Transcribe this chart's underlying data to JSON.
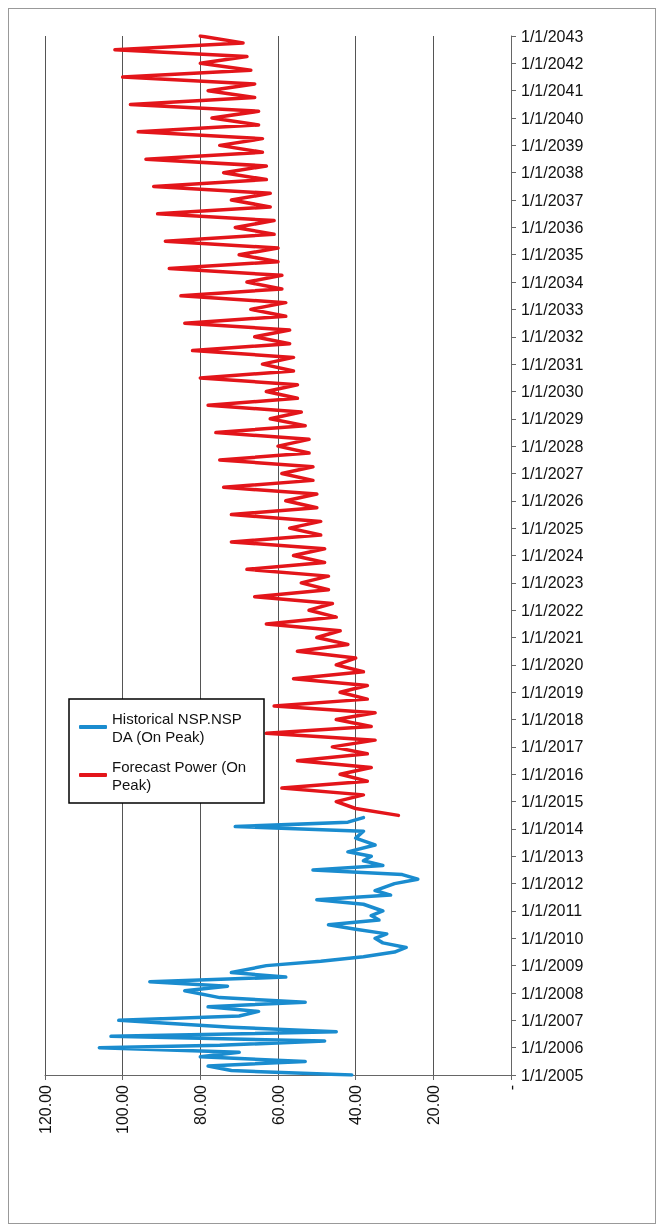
{
  "chart_data": {
    "type": "line",
    "orientation": "horizontal",
    "ylim": [
      "2005-01-01",
      "2043-01-01"
    ],
    "yticks": [
      {
        "value": "2005-01-01",
        "label": "1/1/2005"
      },
      {
        "value": "2006-01-01",
        "label": "1/1/2006"
      },
      {
        "value": "2007-01-01",
        "label": "1/1/2007"
      },
      {
        "value": "2008-01-01",
        "label": "1/1/2008"
      },
      {
        "value": "2009-01-01",
        "label": "1/1/2009"
      },
      {
        "value": "2010-01-01",
        "label": "1/1/2010"
      },
      {
        "value": "2011-01-01",
        "label": "1/1/2011"
      },
      {
        "value": "2012-01-01",
        "label": "1/1/2012"
      },
      {
        "value": "2013-01-01",
        "label": "1/1/2013"
      },
      {
        "value": "2014-01-01",
        "label": "1/1/2014"
      },
      {
        "value": "2015-01-01",
        "label": "1/1/2015"
      },
      {
        "value": "2016-01-01",
        "label": "1/1/2016"
      },
      {
        "value": "2017-01-01",
        "label": "1/1/2017"
      },
      {
        "value": "2018-01-01",
        "label": "1/1/2018"
      },
      {
        "value": "2019-01-01",
        "label": "1/1/2019"
      },
      {
        "value": "2020-01-01",
        "label": "1/1/2020"
      },
      {
        "value": "2021-01-01",
        "label": "1/1/2021"
      },
      {
        "value": "2022-01-01",
        "label": "1/1/2022"
      },
      {
        "value": "2023-01-01",
        "label": "1/1/2023"
      },
      {
        "value": "2024-01-01",
        "label": "1/1/2024"
      },
      {
        "value": "2025-01-01",
        "label": "1/1/2025"
      },
      {
        "value": "2026-01-01",
        "label": "1/1/2026"
      },
      {
        "value": "2027-01-01",
        "label": "1/1/2027"
      },
      {
        "value": "2028-01-01",
        "label": "1/1/2028"
      },
      {
        "value": "2029-01-01",
        "label": "1/1/2029"
      },
      {
        "value": "2030-01-01",
        "label": "1/1/2030"
      },
      {
        "value": "2031-01-01",
        "label": "1/1/2031"
      },
      {
        "value": "2032-01-01",
        "label": "1/1/2032"
      },
      {
        "value": "2033-01-01",
        "label": "1/1/2033"
      },
      {
        "value": "2034-01-01",
        "label": "1/1/2034"
      },
      {
        "value": "2035-01-01",
        "label": "1/1/2035"
      },
      {
        "value": "2036-01-01",
        "label": "1/1/2036"
      },
      {
        "value": "2037-01-01",
        "label": "1/1/2037"
      },
      {
        "value": "2038-01-01",
        "label": "1/1/2038"
      },
      {
        "value": "2039-01-01",
        "label": "1/1/2039"
      },
      {
        "value": "2040-01-01",
        "label": "1/1/2040"
      },
      {
        "value": "2041-01-01",
        "label": "1/1/2041"
      },
      {
        "value": "2042-01-01",
        "label": "1/1/2042"
      },
      {
        "value": "2043-01-01",
        "label": "1/1/2043"
      }
    ],
    "xlim": [
      120,
      0
    ],
    "xticks": [
      {
        "value": 0,
        "label": "-"
      },
      {
        "value": 20,
        "label": "20.00"
      },
      {
        "value": 40,
        "label": "40.00"
      },
      {
        "value": 60,
        "label": "60.00"
      },
      {
        "value": 80,
        "label": "80.00"
      },
      {
        "value": 100,
        "label": "100.00"
      },
      {
        "value": 120,
        "label": "120.00"
      }
    ],
    "grid": "x",
    "legend": "left",
    "marker": "none",
    "line_style": "solid",
    "series": [
      {
        "name": "Historical NSP.NSP DA (On Peak)",
        "color": "#1a8ccf",
        "x": [
          "2005-01",
          "2005-03",
          "2005-05",
          "2005-07",
          "2005-09",
          "2005-11",
          "2006-01",
          "2006-02",
          "2006-04",
          "2006-06",
          "2006-08",
          "2006-10",
          "2007-01",
          "2007-03",
          "2007-05",
          "2007-07",
          "2007-09",
          "2007-11",
          "2008-02",
          "2008-04",
          "2008-06",
          "2008-08",
          "2008-10",
          "2009-01",
          "2009-03",
          "2009-05",
          "2009-07",
          "2009-09",
          "2009-11",
          "2010-01",
          "2010-03",
          "2010-05",
          "2010-07",
          "2010-09",
          "2010-11",
          "2011-01",
          "2011-04",
          "2011-06",
          "2011-08",
          "2011-10",
          "2012-01",
          "2012-03",
          "2012-05",
          "2012-07",
          "2012-09",
          "2012-11",
          "2013-01",
          "2013-03",
          "2013-06",
          "2013-09",
          "2013-12",
          "2014-02",
          "2014-04",
          "2014-06"
        ],
        "values": [
          41,
          72,
          78,
          53,
          80,
          70,
          106,
          75,
          48,
          103,
          45,
          72,
          101,
          70,
          65,
          78,
          53,
          75,
          84,
          73,
          93,
          58,
          72,
          63,
          49,
          38,
          30,
          27,
          33,
          35,
          32,
          40,
          47,
          34,
          36,
          33,
          38,
          50,
          31,
          35,
          30,
          24,
          28,
          51,
          33,
          38,
          36,
          42,
          35,
          40,
          38,
          71,
          42,
          38
        ]
      },
      {
        "name": "Forecast Power (On Peak)",
        "color": "#e3151a",
        "x": [
          "2014-07",
          "2014-10",
          "2015-01",
          "2015-04",
          "2015-07",
          "2015-10",
          "2016-01",
          "2016-04",
          "2016-07",
          "2016-10",
          "2017-01",
          "2017-04",
          "2017-07",
          "2017-10",
          "2018-01",
          "2018-04",
          "2018-07",
          "2018-10",
          "2019-01",
          "2019-04",
          "2019-07",
          "2019-10",
          "2020-01",
          "2020-04",
          "2020-07",
          "2020-10",
          "2021-01",
          "2021-04",
          "2021-07",
          "2021-10",
          "2022-01",
          "2022-04",
          "2022-07",
          "2022-10",
          "2023-01",
          "2023-04",
          "2023-07",
          "2023-10",
          "2024-01",
          "2024-04",
          "2024-07",
          "2024-10",
          "2025-01",
          "2025-04",
          "2025-07",
          "2025-10",
          "2026-01",
          "2026-04",
          "2026-07",
          "2026-10",
          "2027-01",
          "2027-04",
          "2027-07",
          "2027-10",
          "2028-01",
          "2028-04",
          "2028-07",
          "2028-10",
          "2029-01",
          "2029-04",
          "2029-07",
          "2029-10",
          "2030-01",
          "2030-04",
          "2030-07",
          "2030-10",
          "2031-01",
          "2031-04",
          "2031-07",
          "2031-10",
          "2032-01",
          "2032-04",
          "2032-07",
          "2032-10",
          "2033-01",
          "2033-04",
          "2033-07",
          "2033-10",
          "2034-01",
          "2034-04",
          "2034-07",
          "2034-10",
          "2035-01",
          "2035-04",
          "2035-07",
          "2035-10",
          "2036-01",
          "2036-04",
          "2036-07",
          "2036-10",
          "2037-01",
          "2037-04",
          "2037-07",
          "2037-10",
          "2038-01",
          "2038-04",
          "2038-07",
          "2038-10",
          "2039-01",
          "2039-04",
          "2039-07",
          "2039-10",
          "2040-01",
          "2040-04",
          "2040-07",
          "2040-10",
          "2041-01",
          "2041-04",
          "2041-07",
          "2041-10",
          "2042-01",
          "2042-04",
          "2042-07",
          "2042-10",
          "2043-01"
        ],
        "values": [
          29,
          40,
          45,
          38,
          59,
          37,
          44,
          36,
          55,
          37,
          46,
          35,
          63,
          36,
          45,
          35,
          61,
          37,
          44,
          37,
          56,
          38,
          45,
          40,
          55,
          42,
          50,
          44,
          63,
          45,
          52,
          46,
          66,
          47,
          54,
          47,
          68,
          48,
          56,
          48,
          72,
          49,
          57,
          49,
          72,
          50,
          58,
          50,
          74,
          51,
          59,
          51,
          75,
          52,
          60,
          52,
          76,
          53,
          62,
          54,
          78,
          55,
          63,
          55,
          80,
          56,
          64,
          56,
          82,
          57,
          66,
          57,
          84,
          58,
          67,
          58,
          85,
          59,
          68,
          59,
          88,
          60,
          70,
          60,
          89,
          61,
          71,
          61,
          91,
          62,
          72,
          62,
          92,
          63,
          74,
          63,
          94,
          64,
          75,
          64,
          96,
          65,
          77,
          65,
          98,
          66,
          78,
          66,
          100,
          67,
          80,
          68,
          102,
          69,
          80
        ]
      }
    ]
  }
}
